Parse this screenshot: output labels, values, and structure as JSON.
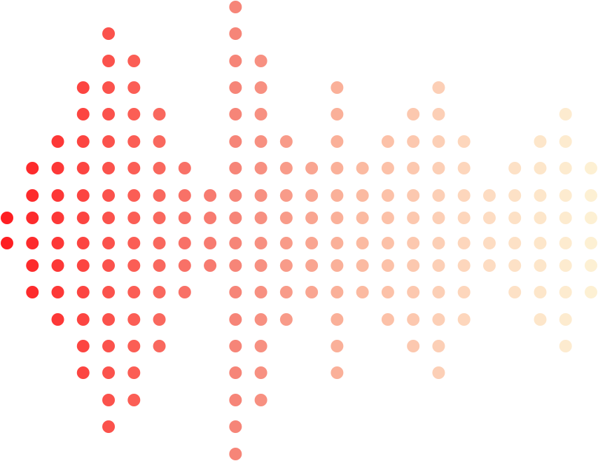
{
  "graphic": {
    "kind": "dot-matrix sound wave",
    "gradient_colors": [
      "#fe1e22",
      "#fb5a52",
      "#f6877a",
      "#fbb9a0",
      "#fdd9bf",
      "#fdf0d3"
    ],
    "columns": [
      {
        "rows": [
          8,
          9
        ]
      },
      {
        "rows": [
          6,
          7,
          8,
          9,
          10,
          11
        ]
      },
      {
        "rows": [
          5,
          6,
          7,
          8,
          9,
          10,
          11,
          12
        ]
      },
      {
        "rows": [
          3,
          4,
          5,
          6,
          7,
          8,
          9,
          10,
          11,
          12,
          13,
          14
        ]
      },
      {
        "rows": [
          1,
          2,
          3,
          4,
          5,
          6,
          7,
          8,
          9,
          10,
          11,
          12,
          13,
          14,
          15,
          16
        ]
      },
      {
        "rows": [
          2,
          3,
          4,
          5,
          6,
          7,
          8,
          9,
          10,
          11,
          12,
          13,
          14,
          15
        ]
      },
      {
        "rows": [
          4,
          5,
          6,
          7,
          8,
          9,
          10,
          11,
          12,
          13
        ]
      },
      {
        "rows": [
          6,
          7,
          8,
          9,
          10,
          11
        ]
      },
      {
        "rows": [
          7,
          8,
          9,
          10
        ]
      },
      {
        "rows": [
          0,
          1,
          2,
          3,
          4,
          5,
          6,
          7,
          8,
          9,
          10,
          11,
          12,
          13,
          14,
          15,
          16,
          17
        ]
      },
      {
        "rows": [
          2,
          3,
          4,
          5,
          6,
          7,
          8,
          9,
          10,
          11,
          12,
          13,
          14,
          15
        ]
      },
      {
        "rows": [
          5,
          6,
          7,
          8,
          9,
          10,
          11,
          12
        ]
      },
      {
        "rows": [
          6,
          7,
          8,
          9,
          10,
          11
        ]
      },
      {
        "rows": [
          3,
          4,
          5,
          6,
          7,
          8,
          9,
          10,
          11,
          12,
          13,
          14
        ]
      },
      {
        "rows": [
          6,
          7,
          8,
          9,
          10,
          11
        ]
      },
      {
        "rows": [
          5,
          6,
          7,
          8,
          9,
          10,
          11,
          12
        ]
      },
      {
        "rows": [
          4,
          5,
          6,
          7,
          8,
          9,
          10,
          11,
          12,
          13
        ]
      },
      {
        "rows": [
          3,
          4,
          5,
          6,
          7,
          8,
          9,
          10,
          11,
          12,
          13,
          14
        ]
      },
      {
        "rows": [
          5,
          6,
          7,
          8,
          9,
          10,
          11,
          12
        ]
      },
      {
        "rows": [
          7,
          8,
          9,
          10
        ]
      },
      {
        "rows": [
          6,
          7,
          8,
          9,
          10,
          11
        ]
      },
      {
        "rows": [
          5,
          6,
          7,
          8,
          9,
          10,
          11,
          12
        ]
      },
      {
        "rows": [
          4,
          5,
          6,
          7,
          8,
          9,
          10,
          11,
          12,
          13
        ]
      },
      {
        "rows": [
          6,
          7,
          8,
          9,
          10,
          11
        ]
      }
    ]
  }
}
